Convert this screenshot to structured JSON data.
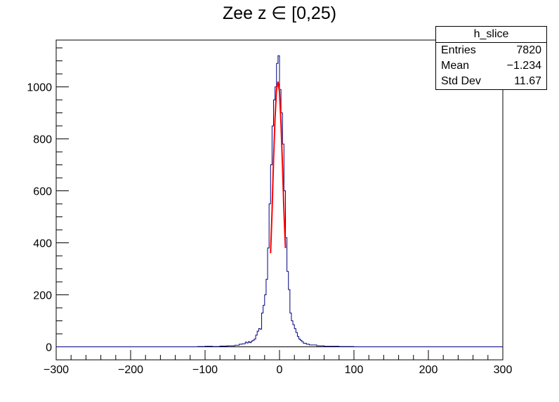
{
  "chart_data": {
    "type": "histogram",
    "title": "Zee z ∈ [0,25)",
    "xlabel": "",
    "ylabel": "",
    "xlim": [
      -300,
      300
    ],
    "ylim": [
      -50,
      1180
    ],
    "x_ticks": [
      -300,
      -200,
      -100,
      0,
      100,
      200,
      300
    ],
    "y_ticks": [
      0,
      200,
      400,
      600,
      800,
      1000
    ],
    "grid": false,
    "line_color": "#000080",
    "fit_color": "#ff0000",
    "stats": {
      "name": "h_slice",
      "rows": [
        {
          "label": "Entries",
          "value": "7820"
        },
        {
          "label": "Mean",
          "value": "−1.234"
        },
        {
          "label": "Std Dev",
          "value": "11.67"
        }
      ]
    },
    "series": [
      {
        "name": "h_slice",
        "bins": [
          [
            -300,
            0
          ],
          [
            -110,
            1
          ],
          [
            -100,
            2
          ],
          [
            -90,
            1
          ],
          [
            -80,
            3
          ],
          [
            -70,
            4
          ],
          [
            -60,
            6
          ],
          [
            -54,
            10
          ],
          [
            -50,
            12
          ],
          [
            -46,
            18
          ],
          [
            -44,
            15
          ],
          [
            -42,
            20
          ],
          [
            -40,
            16
          ],
          [
            -38,
            22
          ],
          [
            -36,
            25
          ],
          [
            -34,
            30
          ],
          [
            -32,
            45
          ],
          [
            -30,
            60
          ],
          [
            -28,
            70
          ],
          [
            -26,
            68
          ],
          [
            -24,
            130
          ],
          [
            -22,
            160
          ],
          [
            -20,
            200
          ],
          [
            -18,
            260
          ],
          [
            -16,
            380
          ],
          [
            -14,
            550
          ],
          [
            -12,
            700
          ],
          [
            -10,
            850
          ],
          [
            -8,
            950
          ],
          [
            -6,
            1000
          ],
          [
            -4,
            1090
          ],
          [
            -2,
            1120
          ],
          [
            0,
            990
          ],
          [
            2,
            900
          ],
          [
            4,
            780
          ],
          [
            6,
            600
          ],
          [
            8,
            420
          ],
          [
            10,
            290
          ],
          [
            12,
            220
          ],
          [
            14,
            130
          ],
          [
            16,
            100
          ],
          [
            18,
            85
          ],
          [
            20,
            70
          ],
          [
            22,
            55
          ],
          [
            24,
            40
          ],
          [
            26,
            30
          ],
          [
            28,
            25
          ],
          [
            30,
            20
          ],
          [
            32,
            14
          ],
          [
            36,
            10
          ],
          [
            40,
            7
          ],
          [
            50,
            4
          ],
          [
            60,
            2
          ],
          [
            80,
            1
          ],
          [
            100,
            0
          ],
          [
            300,
            0
          ]
        ]
      },
      {
        "name": "fit",
        "type": "line",
        "points": [
          [
            -12,
            360
          ],
          [
            -10,
            520
          ],
          [
            -8,
            720
          ],
          [
            -6,
            880
          ],
          [
            -4,
            990
          ],
          [
            -2,
            1020
          ],
          [
            0,
            980
          ],
          [
            2,
            860
          ],
          [
            4,
            700
          ],
          [
            6,
            520
          ],
          [
            8,
            380
          ]
        ]
      }
    ]
  }
}
